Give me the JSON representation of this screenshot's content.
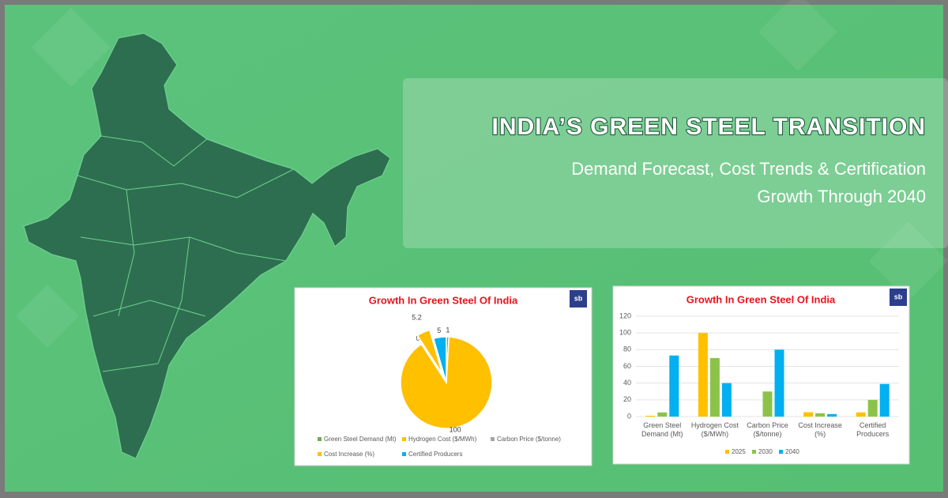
{
  "header": {
    "title": "INDIA’S GREEN STEEL TRANSITION",
    "subtitle": [
      "Demand Forecast, Cost Trends & Certification",
      "Growth Through 2040"
    ]
  },
  "logo": "sb",
  "chart_data": [
    {
      "type": "pie",
      "title": "Growth In Green Steel Of India",
      "categories": [
        "Green Steel Demand (Mt)",
        "Hydrogen Cost ($/MWh)",
        "Carbon Price ($/tonne)",
        "Cost Increase (%)",
        "Certified Producers"
      ],
      "values": [
        1,
        100,
        0,
        5.2,
        5
      ],
      "colors": [
        "#70AD47",
        "#FFC000",
        "#A5A5A5",
        "#FFC000",
        "#00B0F0"
      ],
      "exploded": "Cost Increase (%)"
    },
    {
      "type": "bar",
      "title": "Growth In Green Steel Of India",
      "categories": [
        "Green Steel Demand (Mt)",
        "Hydrogen Cost ($/MWh)",
        "Carbon Price ($/tonne)",
        "Cost Increase (%)",
        "Certified Producers"
      ],
      "series": [
        {
          "name": "2025",
          "color": "#FFC000",
          "values": [
            1,
            100,
            0,
            5.2,
            5
          ]
        },
        {
          "name": "2030",
          "color": "#8BC34A",
          "values": [
            5,
            70,
            30,
            4,
            20
          ]
        },
        {
          "name": "2040",
          "color": "#00B0F0",
          "values": [
            73,
            40,
            80,
            3,
            39
          ]
        }
      ],
      "ylim": [
        0,
        120
      ],
      "yticks": [
        0,
        20,
        40,
        60,
        80,
        100,
        120
      ],
      "grid": true,
      "legend": "bottom"
    }
  ]
}
